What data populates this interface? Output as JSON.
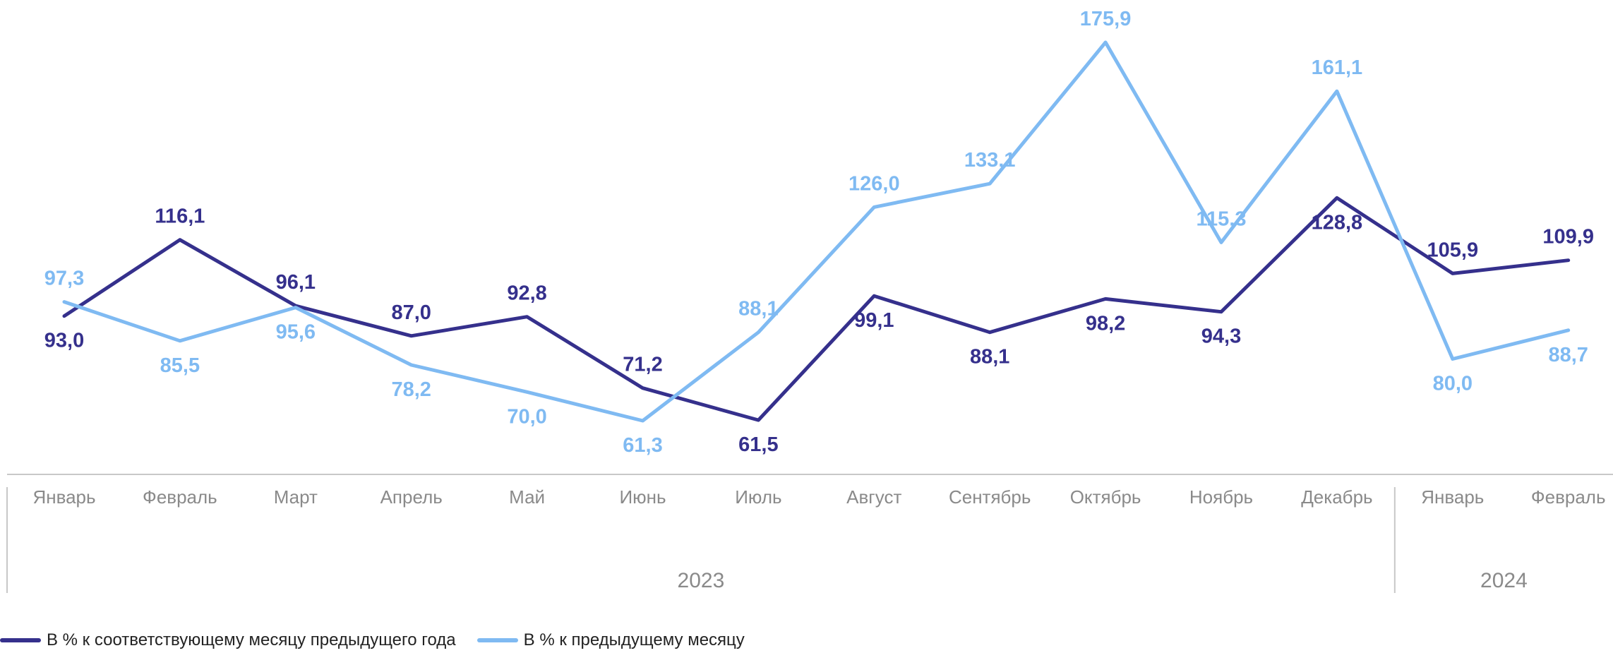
{
  "colors": {
    "series1": "#35308c",
    "series2": "#7fbaf2",
    "axis_text": "#8a8a8a",
    "axis_line": "#c8c8c8"
  },
  "chart_data": {
    "type": "line",
    "title": "",
    "xlabel": "",
    "ylabel": "",
    "categories": [
      "Январь",
      "Февраль",
      "Март",
      "Апрель",
      "Май",
      "Июнь",
      "Июль",
      "Август",
      "Сентябрь",
      "Октябрь",
      "Ноябрь",
      "Декабрь",
      "Январь",
      "Февраль"
    ],
    "year_groups": [
      {
        "label": "2023",
        "count": 12
      },
      {
        "label": "2024",
        "count": 2
      }
    ],
    "series": [
      {
        "name": "В % к соответствующему месяцу предыдущего года",
        "values": [
          93.0,
          116.1,
          96.1,
          87.0,
          92.8,
          71.2,
          61.5,
          99.1,
          88.1,
          98.2,
          94.3,
          128.8,
          105.9,
          109.9
        ],
        "labels": [
          "93,0",
          "116,1",
          "96,1",
          "87,0",
          "92,8",
          "71,2",
          "61,5",
          "99,1",
          "88,1",
          "98,2",
          "94,3",
          "128,8",
          "105,9",
          "109,9"
        ]
      },
      {
        "name": "В % к предыдущему месяцу",
        "values": [
          97.3,
          85.5,
          95.6,
          78.2,
          70.0,
          61.3,
          88.1,
          126.0,
          133.1,
          175.9,
          115.3,
          161.1,
          80.0,
          88.7
        ],
        "labels": [
          "97,3",
          "85,5",
          "95,6",
          "78,2",
          "70,0",
          "61,3",
          "88,1",
          "126,0",
          "133,1",
          "175,9",
          "115,3",
          "161,1",
          "80,0",
          "88,7"
        ]
      }
    ],
    "grid": false,
    "legend_position": "bottom-left"
  }
}
